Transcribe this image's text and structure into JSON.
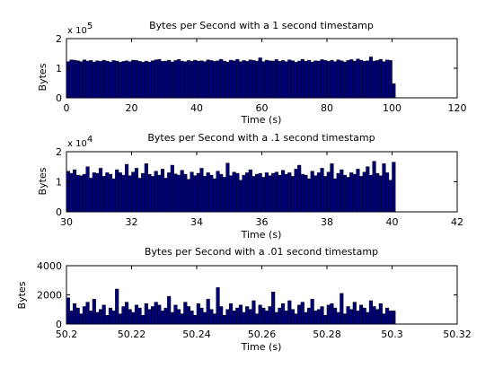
{
  "figure": {
    "background": "#ffffff",
    "bar_color": "#00007a",
    "bar_edge": "#000000"
  },
  "chart_data": [
    {
      "type": "bar",
      "title": "Bytes per Second with a 1 second timestamp",
      "xlabel": "Time (s)",
      "ylabel": "Bytes",
      "y_multiplier": "x 10",
      "y_exponent": "5",
      "xlim": [
        0,
        120
      ],
      "ylim": [
        0,
        2
      ],
      "xticks": [
        "0",
        "20",
        "40",
        "60",
        "80",
        "100",
        "120"
      ],
      "yticks": [
        "0",
        "1",
        "2"
      ],
      "x_start": 0,
      "bin_width": 1,
      "values": [
        1.22,
        1.28,
        1.27,
        1.25,
        1.22,
        1.28,
        1.24,
        1.26,
        1.21,
        1.25,
        1.23,
        1.27,
        1.24,
        1.21,
        1.26,
        1.24,
        1.2,
        1.23,
        1.25,
        1.22,
        1.27,
        1.26,
        1.23,
        1.2,
        1.24,
        1.21,
        1.25,
        1.28,
        1.3,
        1.23,
        1.24,
        1.27,
        1.21,
        1.26,
        1.29,
        1.24,
        1.22,
        1.26,
        1.23,
        1.27,
        1.24,
        1.25,
        1.22,
        1.28,
        1.26,
        1.23,
        1.25,
        1.3,
        1.24,
        1.21,
        1.27,
        1.25,
        1.3,
        1.22,
        1.26,
        1.23,
        1.28,
        1.26,
        1.24,
        1.35,
        1.22,
        1.27,
        1.25,
        1.24,
        1.29,
        1.23,
        1.26,
        1.22,
        1.28,
        1.25,
        1.2,
        1.24,
        1.3,
        1.23,
        1.27,
        1.21,
        1.25,
        1.24,
        1.29,
        1.26,
        1.23,
        1.27,
        1.22,
        1.28,
        1.25,
        1.21,
        1.26,
        1.29,
        1.24,
        1.31,
        1.27,
        1.23,
        1.25,
        1.38,
        1.24,
        1.26,
        1.3,
        1.22,
        1.28,
        1.26,
        0.48
      ]
    },
    {
      "type": "bar",
      "title": "Bytes per Second with a .1 second timestamp",
      "xlabel": "Time (s)",
      "ylabel": "Bytes",
      "y_multiplier": "x 10",
      "y_exponent": "4",
      "xlim": [
        30,
        42
      ],
      "ylim": [
        0,
        2
      ],
      "xticks": [
        "30",
        "32",
        "34",
        "36",
        "38",
        "40",
        "42"
      ],
      "yticks": [
        "0",
        "1",
        "2"
      ],
      "x_start": 30,
      "bin_width": 0.1,
      "values": [
        1.35,
        1.28,
        1.4,
        1.22,
        1.2,
        1.25,
        1.5,
        1.12,
        1.3,
        1.28,
        1.45,
        1.18,
        1.3,
        1.25,
        1.1,
        1.4,
        1.3,
        1.22,
        1.58,
        1.2,
        1.32,
        1.45,
        1.12,
        1.28,
        1.6,
        1.25,
        1.18,
        1.35,
        1.22,
        1.42,
        1.12,
        1.3,
        1.55,
        1.26,
        1.22,
        1.38,
        1.25,
        1.08,
        1.32,
        1.2,
        1.28,
        1.45,
        1.18,
        1.3,
        1.22,
        1.1,
        1.35,
        1.25,
        1.15,
        1.62,
        1.2,
        1.32,
        1.28,
        1.05,
        1.22,
        1.3,
        1.4,
        1.18,
        1.25,
        1.28,
        1.15,
        1.3,
        1.2,
        1.28,
        1.32,
        1.22,
        1.38,
        1.25,
        1.3,
        1.18,
        1.42,
        1.55,
        1.25,
        1.22,
        1.1,
        1.35,
        1.2,
        1.3,
        1.45,
        1.18,
        1.32,
        1.6,
        1.1,
        1.28,
        1.4,
        1.22,
        1.15,
        1.3,
        1.25,
        1.42,
        1.18,
        1.32,
        1.5,
        1.22,
        1.68,
        1.28,
        1.2,
        1.6,
        1.3,
        1.05,
        1.65
      ]
    },
    {
      "type": "bar",
      "title": "Bytes per Second with a .01 second timestamp",
      "xlabel": "Time (s)",
      "ylabel": "Bytes",
      "xlim": [
        50.2,
        50.32
      ],
      "ylim": [
        0,
        4000
      ],
      "xticks": [
        "50.2",
        "50.22",
        "50.24",
        "50.26",
        "50.28",
        "50.3",
        "50.32"
      ],
      "yticks": [
        "0",
        "2000",
        "4000"
      ],
      "x_start": 50.2,
      "bin_width": 0.001,
      "values": [
        1800,
        900,
        1400,
        1100,
        700,
        1200,
        1500,
        900,
        1700,
        800,
        1000,
        1300,
        600,
        1100,
        900,
        2400,
        700,
        1200,
        1500,
        1000,
        800,
        1300,
        1100,
        600,
        1400,
        1000,
        1200,
        1500,
        1300,
        900,
        1100,
        1900,
        800,
        1300,
        1000,
        700,
        1500,
        1200,
        900,
        600,
        1400,
        1100,
        800,
        1700,
        1000,
        700,
        2500,
        1200,
        600,
        1000,
        1400,
        900,
        1100,
        1300,
        800,
        1200,
        1000,
        1600,
        700,
        1300,
        1100,
        900,
        1200,
        2200,
        800,
        1100,
        1400,
        900,
        1600,
        1000,
        700,
        1300,
        1500,
        800,
        1100,
        1700,
        900,
        1000,
        1200,
        600,
        1300,
        1400,
        1100,
        800,
        2100,
        700,
        1200,
        1000,
        1500,
        900,
        1300,
        1100,
        800,
        1600,
        1200,
        1000,
        1400,
        700,
        1100,
        900,
        900
      ]
    }
  ]
}
